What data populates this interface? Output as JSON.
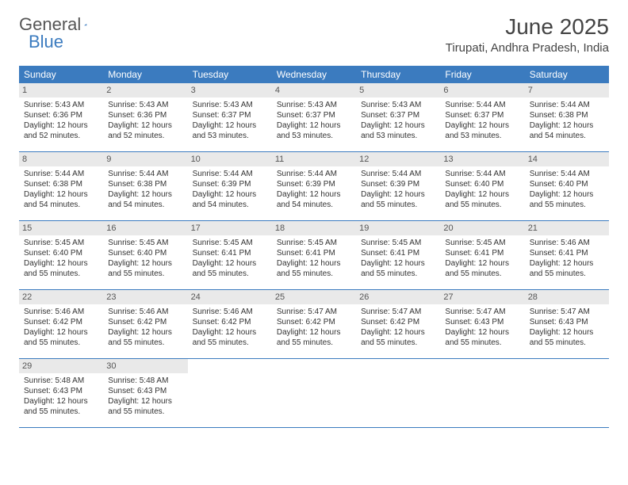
{
  "brand": {
    "part1": "General",
    "part2": "Blue"
  },
  "title": "June 2025",
  "location": "Tirupati, Andhra Pradesh, India",
  "colors": {
    "header_bg": "#3b7bbf",
    "header_text": "#ffffff",
    "daynum_bg": "#e9e9e9",
    "border": "#3b7bbf",
    "text": "#333333",
    "background": "#ffffff"
  },
  "typography": {
    "title_fontsize": 28,
    "location_fontsize": 15,
    "dayhead_fontsize": 12,
    "cell_fontsize": 10
  },
  "layout": {
    "columns": 7,
    "rows": 5,
    "start_offset": 0
  },
  "day_labels": [
    "Sunday",
    "Monday",
    "Tuesday",
    "Wednesday",
    "Thursday",
    "Friday",
    "Saturday"
  ],
  "days": [
    {
      "n": 1,
      "sunrise": "5:43 AM",
      "sunset": "6:36 PM",
      "daylight": "12 hours and 52 minutes."
    },
    {
      "n": 2,
      "sunrise": "5:43 AM",
      "sunset": "6:36 PM",
      "daylight": "12 hours and 52 minutes."
    },
    {
      "n": 3,
      "sunrise": "5:43 AM",
      "sunset": "6:37 PM",
      "daylight": "12 hours and 53 minutes."
    },
    {
      "n": 4,
      "sunrise": "5:43 AM",
      "sunset": "6:37 PM",
      "daylight": "12 hours and 53 minutes."
    },
    {
      "n": 5,
      "sunrise": "5:43 AM",
      "sunset": "6:37 PM",
      "daylight": "12 hours and 53 minutes."
    },
    {
      "n": 6,
      "sunrise": "5:44 AM",
      "sunset": "6:37 PM",
      "daylight": "12 hours and 53 minutes."
    },
    {
      "n": 7,
      "sunrise": "5:44 AM",
      "sunset": "6:38 PM",
      "daylight": "12 hours and 54 minutes."
    },
    {
      "n": 8,
      "sunrise": "5:44 AM",
      "sunset": "6:38 PM",
      "daylight": "12 hours and 54 minutes."
    },
    {
      "n": 9,
      "sunrise": "5:44 AM",
      "sunset": "6:38 PM",
      "daylight": "12 hours and 54 minutes."
    },
    {
      "n": 10,
      "sunrise": "5:44 AM",
      "sunset": "6:39 PM",
      "daylight": "12 hours and 54 minutes."
    },
    {
      "n": 11,
      "sunrise": "5:44 AM",
      "sunset": "6:39 PM",
      "daylight": "12 hours and 54 minutes."
    },
    {
      "n": 12,
      "sunrise": "5:44 AM",
      "sunset": "6:39 PM",
      "daylight": "12 hours and 55 minutes."
    },
    {
      "n": 13,
      "sunrise": "5:44 AM",
      "sunset": "6:40 PM",
      "daylight": "12 hours and 55 minutes."
    },
    {
      "n": 14,
      "sunrise": "5:44 AM",
      "sunset": "6:40 PM",
      "daylight": "12 hours and 55 minutes."
    },
    {
      "n": 15,
      "sunrise": "5:45 AM",
      "sunset": "6:40 PM",
      "daylight": "12 hours and 55 minutes."
    },
    {
      "n": 16,
      "sunrise": "5:45 AM",
      "sunset": "6:40 PM",
      "daylight": "12 hours and 55 minutes."
    },
    {
      "n": 17,
      "sunrise": "5:45 AM",
      "sunset": "6:41 PM",
      "daylight": "12 hours and 55 minutes."
    },
    {
      "n": 18,
      "sunrise": "5:45 AM",
      "sunset": "6:41 PM",
      "daylight": "12 hours and 55 minutes."
    },
    {
      "n": 19,
      "sunrise": "5:45 AM",
      "sunset": "6:41 PM",
      "daylight": "12 hours and 55 minutes."
    },
    {
      "n": 20,
      "sunrise": "5:45 AM",
      "sunset": "6:41 PM",
      "daylight": "12 hours and 55 minutes."
    },
    {
      "n": 21,
      "sunrise": "5:46 AM",
      "sunset": "6:41 PM",
      "daylight": "12 hours and 55 minutes."
    },
    {
      "n": 22,
      "sunrise": "5:46 AM",
      "sunset": "6:42 PM",
      "daylight": "12 hours and 55 minutes."
    },
    {
      "n": 23,
      "sunrise": "5:46 AM",
      "sunset": "6:42 PM",
      "daylight": "12 hours and 55 minutes."
    },
    {
      "n": 24,
      "sunrise": "5:46 AM",
      "sunset": "6:42 PM",
      "daylight": "12 hours and 55 minutes."
    },
    {
      "n": 25,
      "sunrise": "5:47 AM",
      "sunset": "6:42 PM",
      "daylight": "12 hours and 55 minutes."
    },
    {
      "n": 26,
      "sunrise": "5:47 AM",
      "sunset": "6:42 PM",
      "daylight": "12 hours and 55 minutes."
    },
    {
      "n": 27,
      "sunrise": "5:47 AM",
      "sunset": "6:43 PM",
      "daylight": "12 hours and 55 minutes."
    },
    {
      "n": 28,
      "sunrise": "5:47 AM",
      "sunset": "6:43 PM",
      "daylight": "12 hours and 55 minutes."
    },
    {
      "n": 29,
      "sunrise": "5:48 AM",
      "sunset": "6:43 PM",
      "daylight": "12 hours and 55 minutes."
    },
    {
      "n": 30,
      "sunrise": "5:48 AM",
      "sunset": "6:43 PM",
      "daylight": "12 hours and 55 minutes."
    }
  ],
  "labels": {
    "sunrise_prefix": "Sunrise: ",
    "sunset_prefix": "Sunset: ",
    "daylight_prefix": "Daylight: "
  }
}
